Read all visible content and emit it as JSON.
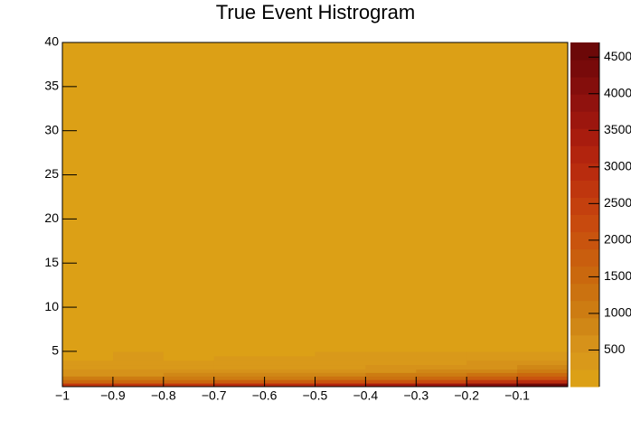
{
  "chart_data": {
    "type": "heatmap",
    "title": "True Event Histrogram",
    "xbins": [
      -1,
      -0.9,
      -0.8,
      -0.7,
      -0.6,
      -0.5,
      -0.4,
      -0.3,
      -0.2,
      -0.1,
      0
    ],
    "ybins": [
      1,
      1.4,
      1.8,
      2.2,
      2.6,
      3,
      3.5,
      4,
      4.5,
      5,
      40
    ],
    "z": [
      [
        2600,
        2700,
        2800,
        2900,
        3000,
        3200,
        3400,
        3700,
        4000,
        4500
      ],
      [
        1500,
        1550,
        1600,
        1700,
        1800,
        1900,
        2100,
        2300,
        2600,
        3000
      ],
      [
        1000,
        1000,
        1050,
        1100,
        1150,
        1250,
        1400,
        1600,
        1800,
        2100
      ],
      [
        700,
        700,
        750,
        750,
        800,
        850,
        950,
        1100,
        1300,
        1500
      ],
      [
        500,
        500,
        520,
        540,
        560,
        600,
        650,
        750,
        900,
        1100
      ],
      [
        350,
        370,
        380,
        400,
        420,
        450,
        500,
        550,
        650,
        800
      ],
      [
        280,
        300,
        280,
        300,
        320,
        350,
        380,
        420,
        500,
        600
      ],
      [
        230,
        260,
        230,
        240,
        260,
        280,
        300,
        330,
        380,
        450
      ],
      [
        120,
        250,
        120,
        130,
        200,
        240,
        250,
        280,
        300,
        350
      ],
      [
        100,
        100,
        100,
        100,
        100,
        100,
        100,
        100,
        100,
        100
      ]
    ],
    "xlim": [
      -1,
      0
    ],
    "ylim": [
      1,
      40
    ],
    "zlim": [
      0,
      4700
    ],
    "xticks": [
      {
        "value": -1,
        "label": "−1"
      },
      {
        "value": -0.9,
        "label": "−0.9"
      },
      {
        "value": -0.8,
        "label": "−0.8"
      },
      {
        "value": -0.7,
        "label": "−0.7"
      },
      {
        "value": -0.6,
        "label": "−0.6"
      },
      {
        "value": -0.5,
        "label": "−0.5"
      },
      {
        "value": -0.4,
        "label": "−0.4"
      },
      {
        "value": -0.3,
        "label": "−0.3"
      },
      {
        "value": -0.2,
        "label": "−0.2"
      },
      {
        "value": -0.1,
        "label": "−0.1"
      }
    ],
    "yticks": [
      5,
      10,
      15,
      20,
      25,
      30,
      35,
      40
    ],
    "zticks": [
      500,
      1000,
      1500,
      2000,
      2500,
      3000,
      3500,
      4000,
      4500
    ],
    "palette": [
      "#dca016",
      "#d9991a",
      "#d6921a",
      "#d08716",
      "#cd7c12",
      "#cb7210",
      "#ca680e",
      "#c95e0e",
      "#c9540e",
      "#c84a0e",
      "#c4400e",
      "#bf360e",
      "#b92c0e",
      "#b2240e",
      "#a81c0e",
      "#9c160e",
      "#90120e",
      "#840e0c",
      "#780a0a",
      "#6c0808"
    ]
  }
}
